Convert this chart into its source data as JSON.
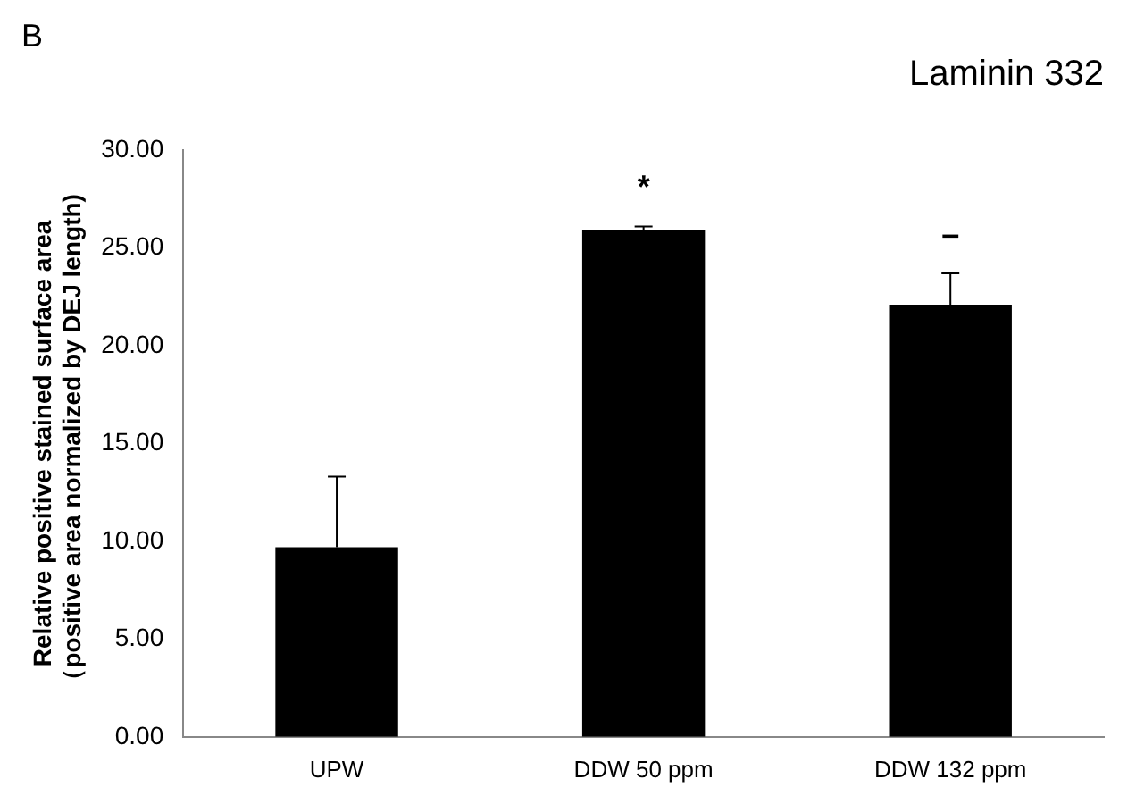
{
  "chart_data": {
    "type": "bar",
    "title": "Laminin 332",
    "ylabel": "Relative positive stained surface area\n（positive area normalized by DEJ length)",
    "categories": [
      "UPW",
      "DDW 50 ppm",
      "DDW 132 ppm"
    ],
    "values": [
      9.7,
      25.9,
      22.1
    ],
    "errors": [
      3.6,
      0.2,
      1.6
    ],
    "color": "#000000",
    "ylim": [
      0,
      30
    ],
    "yticks": [
      {
        "value": 0,
        "label": "0.00"
      },
      {
        "value": 5,
        "label": "5.00"
      },
      {
        "value": 10,
        "label": "10.00"
      },
      {
        "value": 15,
        "label": "15.00"
      },
      {
        "value": 20,
        "label": "20.00"
      },
      {
        "value": 25,
        "label": "25.00"
      },
      {
        "value": 30,
        "label": "30.00"
      }
    ],
    "grid": false,
    "annotations": [
      "B",
      "*",
      "–"
    ]
  }
}
